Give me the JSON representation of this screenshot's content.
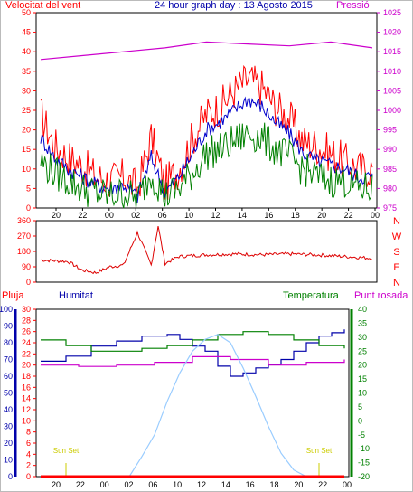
{
  "header": {
    "title": "24 hour graph day : 13 Agosto 2015",
    "left_label": "Velocitat del vent",
    "right_label": "Pressió"
  },
  "legend": {
    "pluja": "Pluja",
    "humitat": "Humitat",
    "temperatura": "Temperatura",
    "punt_rosada": "Punt rosada"
  },
  "colors": {
    "wind_gust": "#ff0000",
    "wind_avg": "#0000cc",
    "wind_low": "#008000",
    "pressure": "#cc00cc",
    "direction": "#dd0000",
    "humidity": "#0000aa",
    "temperature": "#008000",
    "dewpoint": "#cc00cc",
    "rain": "#ff0000",
    "solar": "#99ccff",
    "sunset": "#cccc00"
  },
  "chart_data": [
    {
      "type": "line",
      "panel": "wind_pressure",
      "x_ticks": [
        "20",
        "22",
        "00",
        "02",
        "06",
        "10",
        "12",
        "14",
        "16",
        "18",
        "20",
        "22",
        "00"
      ],
      "y_left_ticks": [
        0,
        5,
        10,
        15,
        20,
        25,
        30,
        35,
        40,
        45,
        50
      ],
      "y_right_ticks": [
        975,
        980,
        985,
        990,
        995,
        1000,
        1005,
        1010,
        1015,
        1020,
        1025
      ],
      "ylim_left": [
        0,
        50
      ],
      "ylim_right": [
        975,
        1025
      ],
      "series": [
        {
          "key": "wind_gust",
          "hours": [
            0,
            1,
            2,
            3,
            4,
            5,
            6,
            7,
            8,
            9,
            10,
            11,
            12,
            13,
            14,
            15,
            16,
            17,
            18,
            19,
            20,
            21,
            22,
            23,
            24
          ],
          "values": [
            24,
            16,
            13,
            11,
            8,
            7,
            8,
            5,
            18,
            6,
            10,
            18,
            24,
            26,
            30,
            33,
            31,
            26,
            23,
            17,
            16,
            14,
            12,
            10,
            10
          ]
        },
        {
          "key": "wind_avg",
          "hours": [
            0,
            1,
            2,
            3,
            4,
            5,
            6,
            7,
            8,
            9,
            10,
            11,
            12,
            13,
            14,
            15,
            16,
            17,
            18,
            19,
            20,
            21,
            22,
            23,
            24
          ],
          "values": [
            18,
            13,
            10,
            8,
            6,
            5,
            6,
            3,
            13,
            4,
            8,
            14,
            20,
            22,
            25,
            28,
            26,
            22,
            19,
            14,
            12,
            11,
            10,
            8,
            8
          ]
        },
        {
          "key": "wind_low",
          "hours": [
            0,
            1,
            2,
            3,
            4,
            5,
            6,
            7,
            8,
            9,
            10,
            11,
            12,
            13,
            14,
            15,
            16,
            17,
            18,
            19,
            20,
            21,
            22,
            23,
            24
          ],
          "values": [
            12,
            9,
            7,
            5,
            4,
            3,
            4,
            2,
            9,
            3,
            5,
            9,
            14,
            15,
            17,
            19,
            18,
            15,
            13,
            10,
            8,
            7,
            7,
            5,
            5
          ]
        },
        {
          "key": "pressure",
          "axis": "right",
          "hours": [
            0,
            3,
            6,
            9,
            12,
            15,
            18,
            21,
            24
          ],
          "values": [
            1013,
            1014,
            1015,
            1016,
            1017.5,
            1017,
            1016.5,
            1017.5,
            1016
          ]
        }
      ]
    },
    {
      "type": "scatter",
      "panel": "wind_direction",
      "y_ticks": [
        "360",
        "270",
        "180",
        "90",
        "0"
      ],
      "y_right_labels": [
        "N",
        "W",
        "S",
        "E",
        "N"
      ],
      "ylim": [
        0,
        360
      ],
      "hours": [
        0,
        1,
        2,
        3,
        4,
        5,
        6,
        7,
        8,
        8.5,
        9,
        10,
        12,
        14,
        16,
        18,
        20,
        22,
        24
      ],
      "values": [
        130,
        125,
        120,
        70,
        55,
        90,
        100,
        290,
        100,
        330,
        110,
        150,
        160,
        165,
        160,
        165,
        160,
        150,
        140
      ]
    },
    {
      "type": "line",
      "panel": "humidity_temperature",
      "y_left_ticks": [
        0,
        10,
        20,
        30,
        40,
        50,
        60,
        70,
        80,
        90,
        100
      ],
      "y_pluja_ticks": [
        0,
        2,
        4,
        6,
        8,
        10,
        12,
        14,
        16,
        18,
        20,
        22,
        24,
        26,
        28,
        30
      ],
      "y_right_ticks": [
        -20,
        -15,
        -10,
        -5,
        0,
        5,
        10,
        15,
        20,
        25,
        30,
        35,
        40
      ],
      "annotations": [
        "Sun Set",
        "Sun Set"
      ],
      "series": [
        {
          "key": "humidity",
          "axis": "humidity",
          "hours": [
            0,
            2,
            4,
            6,
            8,
            10,
            11,
            12,
            13,
            14,
            15,
            16,
            17,
            18,
            19,
            20,
            21,
            22,
            23,
            24
          ],
          "values": [
            69,
            72,
            78,
            81,
            84,
            85,
            82,
            78,
            75,
            66,
            60,
            62,
            65,
            67,
            70,
            75,
            80,
            84,
            86,
            88
          ]
        },
        {
          "key": "temperature",
          "axis": "temp",
          "hours": [
            0,
            2,
            4,
            6,
            8,
            10,
            12,
            14,
            16,
            18,
            20,
            22,
            24
          ],
          "values": [
            29,
            27,
            25,
            25,
            26,
            27,
            29,
            31,
            32,
            31,
            29,
            27,
            26
          ]
        },
        {
          "key": "dewpoint",
          "axis": "temp",
          "hours": [
            0,
            3,
            6,
            9,
            12,
            15,
            18,
            21,
            24
          ],
          "values": [
            20,
            19.5,
            20,
            21,
            23,
            22,
            20,
            21,
            22
          ]
        },
        {
          "key": "solar",
          "axis": "humidity",
          "hours": [
            7,
            8,
            9,
            10,
            11,
            12,
            13,
            14,
            15,
            16,
            17,
            18,
            19,
            20,
            21
          ],
          "values": [
            0,
            12,
            25,
            45,
            62,
            75,
            82,
            85,
            80,
            65,
            48,
            30,
            14,
            4,
            0
          ]
        },
        {
          "key": "rain",
          "axis": "humidity",
          "hours": [
            0,
            24
          ],
          "values": [
            0,
            0
          ]
        }
      ]
    }
  ]
}
